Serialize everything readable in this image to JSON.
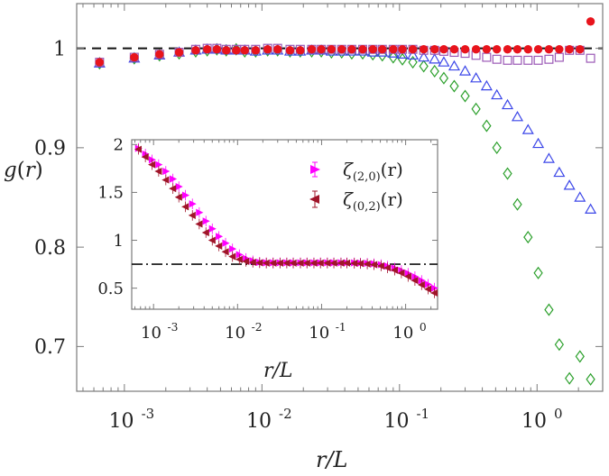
{
  "chart_data": [
    {
      "type": "scatter",
      "xscale": "log",
      "xlim": [
        0.00045,
        3.0
      ],
      "ylim": [
        0.655,
        1.045
      ],
      "ylabel": "g(r)",
      "xlabel": "r/L",
      "yticks": [
        0.7,
        0.8,
        0.9,
        1
      ],
      "ytick_labels": [
        "0.7",
        "0.8",
        "0.9",
        "1"
      ],
      "xticks": [
        0.001,
        0.01,
        0.1,
        1
      ],
      "xtick_labels": [
        "10",
        "10",
        "10",
        "10"
      ],
      "xtick_exponents": [
        "-3",
        "-2",
        "-1",
        "0"
      ],
      "reference_line": 1,
      "series": [
        {
          "marker": "diamond-open",
          "color": "#2ca02c",
          "x": [
            0.00066,
            0.00118,
            0.0018,
            0.0025,
            0.0033,
            0.004,
            0.0047,
            0.0055,
            0.0065,
            0.0075,
            0.009,
            0.011,
            0.013,
            0.016,
            0.019,
            0.023,
            0.027,
            0.032,
            0.038,
            0.045,
            0.054,
            0.064,
            0.075,
            0.09,
            0.105,
            0.125,
            0.15,
            0.18,
            0.21,
            0.25,
            0.3,
            0.36,
            0.43,
            0.51,
            0.61,
            0.72,
            0.86,
            1.02,
            1.22,
            1.45,
            1.72,
            2.05,
            2.45
          ],
          "y": [
            0.985,
            0.99,
            0.993,
            0.995,
            0.997,
            0.998,
            0.999,
            0.998,
            0.999,
            0.997,
            0.997,
            0.998,
            0.998,
            0.997,
            0.997,
            0.997,
            0.997,
            0.996,
            0.996,
            0.995,
            0.995,
            0.994,
            0.993,
            0.991,
            0.989,
            0.986,
            0.982,
            0.977,
            0.97,
            0.962,
            0.952,
            0.939,
            0.922,
            0.9,
            0.874,
            0.843,
            0.81,
            0.774,
            0.737,
            0.702,
            0.668,
            0.69,
            0.667
          ]
        },
        {
          "marker": "triangle-open",
          "color": "#3b46e8",
          "x": [
            0.00066,
            0.00118,
            0.0018,
            0.0025,
            0.0033,
            0.004,
            0.0047,
            0.0055,
            0.0065,
            0.0075,
            0.009,
            0.011,
            0.013,
            0.016,
            0.019,
            0.023,
            0.027,
            0.032,
            0.038,
            0.045,
            0.054,
            0.064,
            0.075,
            0.09,
            0.105,
            0.125,
            0.15,
            0.18,
            0.21,
            0.25,
            0.3,
            0.36,
            0.43,
            0.51,
            0.61,
            0.72,
            0.86,
            1.02,
            1.22,
            1.45,
            1.72,
            2.05,
            2.45
          ],
          "y": [
            0.985,
            0.99,
            0.993,
            0.996,
            0.998,
            0.999,
            0.999,
            0.998,
            0.998,
            0.998,
            0.997,
            0.998,
            0.998,
            0.997,
            0.997,
            0.998,
            0.998,
            0.997,
            0.997,
            0.997,
            0.997,
            0.996,
            0.996,
            0.995,
            0.994,
            0.993,
            0.991,
            0.989,
            0.986,
            0.982,
            0.977,
            0.97,
            0.962,
            0.953,
            0.943,
            0.931,
            0.918,
            0.904,
            0.889,
            0.875,
            0.862,
            0.85,
            0.838
          ]
        },
        {
          "marker": "square-open",
          "color": "#9b59b6",
          "x": [
            0.00066,
            0.00118,
            0.0018,
            0.0025,
            0.0033,
            0.004,
            0.0047,
            0.0055,
            0.0065,
            0.0075,
            0.009,
            0.011,
            0.013,
            0.016,
            0.019,
            0.023,
            0.027,
            0.032,
            0.038,
            0.045,
            0.054,
            0.064,
            0.075,
            0.09,
            0.105,
            0.125,
            0.15,
            0.18,
            0.21,
            0.25,
            0.3,
            0.36,
            0.43,
            0.51,
            0.61,
            0.72,
            0.86,
            1.02,
            1.22,
            1.45,
            1.72,
            2.05,
            2.45
          ],
          "y": [
            0.986,
            0.991,
            0.994,
            0.996,
            0.999,
            1.0,
            1.0,
            0.999,
            0.999,
            0.999,
            0.999,
            1.0,
            1.0,
            0.999,
            0.999,
            0.999,
            0.999,
            0.999,
            0.999,
            0.999,
            0.999,
            0.999,
            0.999,
            0.999,
            0.999,
            0.999,
            0.998,
            0.998,
            0.997,
            0.996,
            0.995,
            0.993,
            0.991,
            0.989,
            0.988,
            0.988,
            0.988,
            0.988,
            0.989,
            0.991,
            0.998,
            0.998,
            0.99
          ]
        },
        {
          "marker": "circle-filled",
          "color": "#e8141c",
          "x": [
            0.00066,
            0.00118,
            0.0018,
            0.0025,
            0.0033,
            0.004,
            0.0047,
            0.0055,
            0.0065,
            0.0075,
            0.009,
            0.011,
            0.013,
            0.016,
            0.019,
            0.023,
            0.027,
            0.032,
            0.038,
            0.045,
            0.054,
            0.064,
            0.075,
            0.09,
            0.105,
            0.125,
            0.15,
            0.18,
            0.21,
            0.25,
            0.3,
            0.36,
            0.43,
            0.51,
            0.61,
            0.72,
            0.86,
            1.02,
            1.22,
            1.45,
            1.72,
            2.05,
            2.45
          ],
          "y": [
            0.986,
            0.991,
            0.994,
            0.996,
            0.998,
            0.999,
            0.999,
            0.998,
            0.998,
            0.998,
            0.998,
            0.999,
            0.999,
            0.998,
            0.998,
            0.999,
            0.999,
            0.999,
            0.999,
            0.999,
            0.999,
            0.999,
            0.999,
            0.999,
            0.999,
            0.999,
            0.999,
            0.999,
            0.999,
            0.999,
            0.999,
            0.999,
            0.999,
            0.999,
            0.999,
            0.999,
            0.999,
            0.999,
            0.999,
            0.999,
            0.999,
            0.999,
            1.027
          ]
        }
      ]
    },
    {
      "type": "scatter",
      "xscale": "log",
      "xlim": [
        0.00055,
        2.4
      ],
      "ylim": [
        0.28,
        2.05
      ],
      "xlabel": "r/L",
      "yticks": [
        0.5,
        1,
        1.5,
        2
      ],
      "ytick_labels": [
        "0.5",
        "1",
        "1.5",
        "2"
      ],
      "xticks": [
        0.001,
        0.01,
        0.1,
        1
      ],
      "xtick_labels": [
        "10",
        "10",
        "10",
        "10"
      ],
      "xtick_exponents": [
        "-3",
        "-2",
        "-1",
        "0"
      ],
      "reference_line": 0.75,
      "legend": "top-right",
      "series": [
        {
          "name": "ζ(2,0)(r)",
          "marker": "triangle-right-filled",
          "color": "#ff00ff",
          "x": [
            0.00066,
            0.0008,
            0.00096,
            0.00115,
            0.0014,
            0.0017,
            0.002,
            0.0024,
            0.0029,
            0.0035,
            0.0042,
            0.005,
            0.006,
            0.0072,
            0.0087,
            0.0105,
            0.0126,
            0.0152,
            0.0183,
            0.022,
            0.0265,
            0.032,
            0.0385,
            0.046,
            0.056,
            0.067,
            0.081,
            0.097,
            0.117,
            0.14,
            0.17,
            0.2,
            0.245,
            0.29,
            0.35,
            0.42,
            0.51,
            0.61,
            0.74,
            0.89,
            1.07,
            1.29,
            1.55,
            1.85,
            2.2
          ],
          "y": [
            1.96,
            1.9,
            1.84,
            1.79,
            1.72,
            1.64,
            1.56,
            1.47,
            1.38,
            1.29,
            1.2,
            1.12,
            1.04,
            0.97,
            0.91,
            0.85,
            0.81,
            0.785,
            0.77,
            0.765,
            0.765,
            0.765,
            0.765,
            0.765,
            0.765,
            0.765,
            0.765,
            0.765,
            0.765,
            0.765,
            0.765,
            0.765,
            0.764,
            0.762,
            0.76,
            0.755,
            0.745,
            0.73,
            0.71,
            0.685,
            0.655,
            0.62,
            0.58,
            0.54,
            0.5
          ]
        },
        {
          "name": "ζ(0,2)(r)",
          "marker": "triangle-left-filled",
          "color": "#a0152a",
          "x": [
            0.00066,
            0.0008,
            0.00096,
            0.00115,
            0.0014,
            0.0017,
            0.002,
            0.0024,
            0.0029,
            0.0035,
            0.0042,
            0.005,
            0.006,
            0.0072,
            0.0087,
            0.0105,
            0.0126,
            0.0152,
            0.0183,
            0.022,
            0.0265,
            0.032,
            0.0385,
            0.046,
            0.056,
            0.067,
            0.081,
            0.097,
            0.117,
            0.14,
            0.17,
            0.2,
            0.245,
            0.29,
            0.35,
            0.42,
            0.51,
            0.61,
            0.74,
            0.89,
            1.07,
            1.29,
            1.55,
            1.85,
            2.2
          ],
          "y": [
            1.95,
            1.87,
            1.79,
            1.72,
            1.63,
            1.54,
            1.45,
            1.35,
            1.26,
            1.17,
            1.08,
            1.0,
            0.94,
            0.88,
            0.83,
            0.8,
            0.78,
            0.77,
            0.765,
            0.762,
            0.762,
            0.762,
            0.762,
            0.762,
            0.762,
            0.762,
            0.762,
            0.762,
            0.762,
            0.762,
            0.762,
            0.762,
            0.76,
            0.757,
            0.752,
            0.745,
            0.732,
            0.712,
            0.688,
            0.658,
            0.622,
            0.58,
            0.535,
            0.49,
            0.45
          ]
        }
      ]
    }
  ],
  "main": {
    "ylabel_g": "g",
    "ylabel_r": "r"
  },
  "legend": {
    "zeta": "ζ",
    "sub1": "(2,0)",
    "sub2": "(0,2)",
    "arg": "(r)"
  }
}
